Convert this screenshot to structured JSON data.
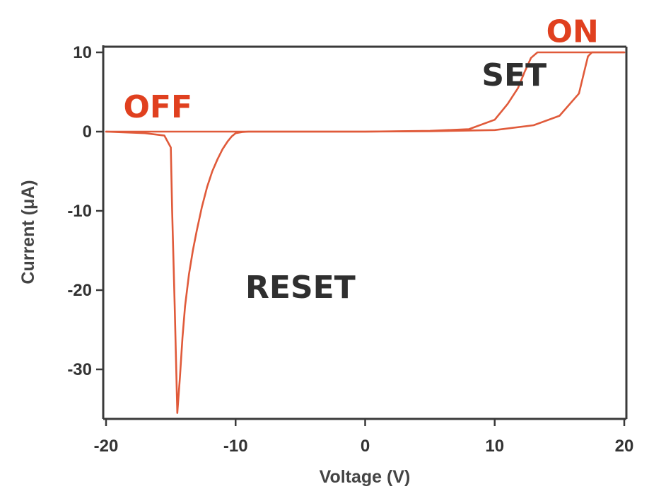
{
  "chart_data": {
    "type": "line",
    "xlabel": "Voltage (V)",
    "ylabel": "Current (μA)",
    "xlim": [
      -20,
      20
    ],
    "ylim": [
      -36,
      10
    ],
    "xticks": [
      -20,
      -10,
      0,
      10,
      20
    ],
    "yticks": [
      10,
      0,
      -10,
      -20,
      -30
    ],
    "grid": false,
    "colors": {
      "curve": "#e05a3a",
      "annotation_red": "#e0401f",
      "annotation_dark": "#2f2f2f",
      "axis": "#3a3a3a"
    },
    "annotations": [
      {
        "text": "ON",
        "x": 16,
        "y": 11.3,
        "style": "red"
      },
      {
        "text": "OFF",
        "x": -16,
        "y": 1.8,
        "style": "red"
      },
      {
        "text": "SET",
        "x": 11.5,
        "y": 5.8,
        "style": "dark"
      },
      {
        "text": "RESET",
        "x": -5,
        "y": -21,
        "style": "dark"
      }
    ],
    "series": [
      {
        "x": [
          -20,
          -17,
          -15.5,
          -15,
          -14.9,
          -14.7,
          -14.5,
          -14.3,
          -14.1,
          -13.9,
          -13.6,
          -13.3,
          -13,
          -12.6,
          -12.2,
          -11.8,
          -11.4,
          -11,
          -10.6,
          -10.3,
          -10,
          -9.5,
          -9,
          -5,
          0,
          5,
          8,
          10,
          11,
          11.8,
          12.3,
          12.8,
          13.3,
          14,
          16,
          17.5,
          20
        ],
        "y": [
          0,
          -0.2,
          -0.5,
          -2,
          -10,
          -22,
          -35.5,
          -31,
          -26,
          -22,
          -18,
          -15,
          -12.5,
          -9.5,
          -7,
          -5,
          -3.5,
          -2.2,
          -1.2,
          -0.6,
          -0.2,
          -0.05,
          0,
          0,
          0,
          0.1,
          0.3,
          1.5,
          3.5,
          5.5,
          7.5,
          9.3,
          10,
          10,
          10,
          10,
          10
        ]
      },
      {
        "x": [
          -20,
          -10,
          0,
          5,
          10,
          13,
          15,
          16.5,
          16.9,
          17.2,
          17.5,
          20
        ],
        "y": [
          0,
          0,
          0,
          0.05,
          0.2,
          0.8,
          2,
          4.8,
          7.5,
          9.5,
          10,
          10
        ]
      }
    ]
  }
}
